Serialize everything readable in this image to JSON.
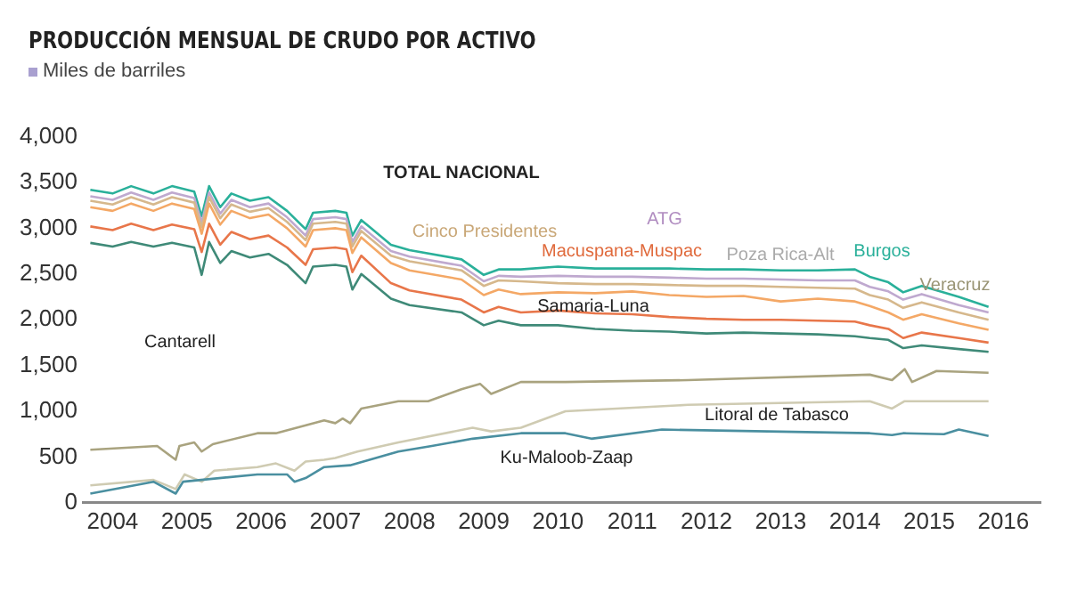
{
  "chart_data": {
    "type": "line",
    "title": "PRODUCCIÓN MENSUAL DE CRUDO POR ACTIVO",
    "subtitle": "Miles de barriles",
    "x": [
      2003.7,
      2004.0,
      2004.25,
      2004.55,
      2004.8,
      2005.1,
      2005.2,
      2005.3,
      2005.45,
      2005.6,
      2005.85,
      2006.1,
      2006.35,
      2006.6,
      2006.7,
      2007.0,
      2007.15,
      2007.23,
      2007.35,
      2007.75,
      2008.0,
      2008.7,
      2009.0,
      2009.2,
      2009.5,
      2010.0,
      2010.5,
      2011.0,
      2011.5,
      2012.0,
      2012.5,
      2013.0,
      2013.5,
      2014.0,
      2014.2,
      2014.45,
      2014.65,
      2014.9,
      2015.4,
      2015.8
    ],
    "series": [
      {
        "color": "#4a8fa0",
        "x": [
          2003.7,
          2004.55,
          2004.85,
          2004.95,
          2005.95,
          2006.35,
          2006.45,
          2006.6,
          2006.85,
          2007.2,
          2007.85,
          2008.3,
          2008.85,
          2009.5,
          2010.1,
          2010.45,
          2011.4,
          2014.2,
          2014.5,
          2014.65,
          2015.2,
          2015.4,
          2015.8
        ],
        "values": [
          100,
          230,
          100,
          230,
          310,
          310,
          230,
          270,
          390,
          410,
          560,
          620,
          700,
          760,
          760,
          700,
          800,
          760,
          740,
          760,
          750,
          800,
          730
        ]
      },
      {
        "color": "#cfcbb2",
        "x": [
          2003.7,
          2004.55,
          2004.85,
          2004.97,
          2005.2,
          2005.37,
          2005.95,
          2006.2,
          2006.45,
          2006.6,
          2006.85,
          2007.0,
          2007.3,
          2007.85,
          2008.85,
          2009.1,
          2009.5,
          2010.1,
          2011.75,
          2014.2,
          2014.5,
          2014.67,
          2015.8
        ],
        "values": [
          190,
          250,
          150,
          310,
          230,
          350,
          390,
          430,
          350,
          450,
          470,
          490,
          560,
          660,
          820,
          780,
          820,
          1000,
          1070,
          1110,
          1030,
          1110,
          1110
        ]
      },
      {
        "color": "#a9a37f",
        "x": [
          2003.7,
          2004.6,
          2004.85,
          2004.9,
          2005.1,
          2005.2,
          2005.35,
          2005.95,
          2006.2,
          2006.85,
          2007.0,
          2007.1,
          2007.2,
          2007.35,
          2007.85,
          2008.25,
          2008.7,
          2008.95,
          2009.1,
          2009.5,
          2010.1,
          2011.75,
          2014.2,
          2014.5,
          2014.67,
          2014.77,
          2015.1,
          2015.8
        ],
        "values": [
          580,
          620,
          470,
          620,
          660,
          560,
          640,
          760,
          760,
          900,
          870,
          920,
          870,
          1030,
          1110,
          1110,
          1240,
          1300,
          1190,
          1320,
          1320,
          1340,
          1400,
          1340,
          1460,
          1320,
          1440,
          1420
        ]
      },
      {
        "color": "#3f8a78",
        "values": [
          2840,
          2800,
          2850,
          2800,
          2840,
          2790,
          2490,
          2850,
          2620,
          2750,
          2680,
          2720,
          2600,
          2400,
          2580,
          2600,
          2580,
          2330,
          2500,
          2230,
          2160,
          2080,
          1940,
          1990,
          1940,
          1940,
          1900,
          1880,
          1870,
          1850,
          1860,
          1850,
          1840,
          1820,
          1800,
          1780,
          1690,
          1720,
          1680,
          1650
        ]
      },
      {
        "color": "#e8764a",
        "values": [
          3020,
          2980,
          3050,
          2980,
          3040,
          2990,
          2740,
          3050,
          2820,
          2960,
          2880,
          2920,
          2790,
          2600,
          2770,
          2790,
          2770,
          2520,
          2700,
          2400,
          2320,
          2220,
          2080,
          2140,
          2080,
          2100,
          2070,
          2060,
          2030,
          2010,
          2000,
          2000,
          1990,
          1980,
          1940,
          1900,
          1800,
          1860,
          1800,
          1750
        ]
      },
      {
        "color": "#f4a866",
        "values": [
          3230,
          3190,
          3270,
          3190,
          3270,
          3210,
          2940,
          3270,
          3040,
          3190,
          3110,
          3150,
          3000,
          2800,
          2980,
          3000,
          2980,
          2730,
          2900,
          2620,
          2540,
          2440,
          2270,
          2330,
          2280,
          2300,
          2290,
          2310,
          2270,
          2250,
          2260,
          2200,
          2230,
          2200,
          2150,
          2080,
          2000,
          2060,
          1960,
          1890
        ]
      },
      {
        "color": "#d6b88c",
        "values": [
          3300,
          3260,
          3340,
          3260,
          3340,
          3280,
          3010,
          3340,
          3110,
          3260,
          3180,
          3220,
          3070,
          2870,
          3050,
          3070,
          3050,
          2800,
          2970,
          2700,
          2640,
          2540,
          2370,
          2430,
          2420,
          2400,
          2390,
          2390,
          2380,
          2370,
          2370,
          2360,
          2350,
          2340,
          2270,
          2220,
          2130,
          2190,
          2080,
          2000
        ]
      },
      {
        "color": "#bfa9cf",
        "values": [
          3350,
          3310,
          3390,
          3310,
          3390,
          3330,
          3060,
          3390,
          3160,
          3310,
          3230,
          3270,
          3120,
          2920,
          3100,
          3120,
          3100,
          2850,
          3020,
          2750,
          2690,
          2590,
          2420,
          2480,
          2470,
          2480,
          2470,
          2470,
          2460,
          2450,
          2450,
          2440,
          2430,
          2430,
          2360,
          2310,
          2220,
          2280,
          2160,
          2080
        ]
      },
      {
        "color": "#2ab09a",
        "values": [
          3420,
          3380,
          3460,
          3380,
          3460,
          3400,
          3130,
          3460,
          3230,
          3380,
          3300,
          3340,
          3190,
          2990,
          3170,
          3190,
          3170,
          2920,
          3090,
          2820,
          2760,
          2660,
          2490,
          2550,
          2550,
          2580,
          2560,
          2560,
          2560,
          2550,
          2550,
          2540,
          2540,
          2550,
          2470,
          2410,
          2300,
          2370,
          2250,
          2140
        ]
      }
    ],
    "xlim": [
      2003.6,
      2016.5
    ],
    "xticks": [
      2004,
      2005,
      2006,
      2007,
      2008,
      2009,
      2010,
      2011,
      2012,
      2013,
      2014,
      2015,
      2016
    ],
    "ylim": [
      0,
      4000
    ],
    "yticks": [
      0,
      500,
      {
        "value": 1000,
        "label": "1,000"
      },
      {
        "value": 1500,
        "label": "1,500"
      },
      {
        "value": 2000,
        "label": "2,000"
      },
      {
        "value": 2500,
        "label": "2,500"
      },
      {
        "value": 3000,
        "label": "3,000"
      },
      {
        "value": 3500,
        "label": "3,500"
      },
      {
        "value": 4000,
        "label": "4,000"
      }
    ],
    "annotations": [
      "TOTAL NACIONAL",
      "Cinco Presidentes",
      "ATG",
      "Macuspana-Muspac",
      "Poza Rica-Alt",
      "Burgos",
      "Veracruz",
      "Samaria-Luna",
      "Cantarell",
      "Litoral de Tabasco",
      "Ku-Maloob-Zaap"
    ],
    "grid": false,
    "legend": false,
    "marker": "none",
    "line_style": "solid"
  }
}
